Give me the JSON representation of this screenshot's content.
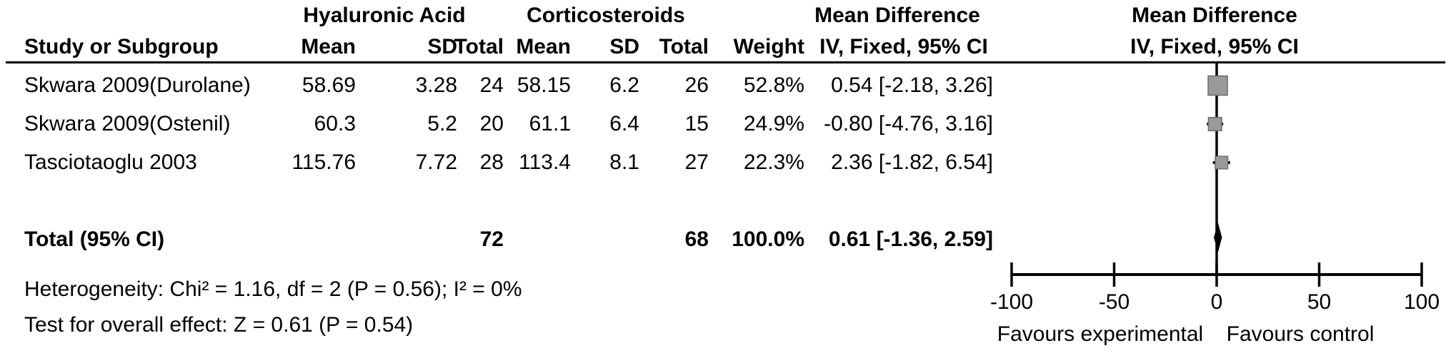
{
  "figure": {
    "group1_header": "Hyaluronic Acid",
    "group2_header": "Corticosteroids",
    "md_header_table": "Mean Difference",
    "md_header_plot": "Mean Difference",
    "method_header_table": "IV, Fixed, 95% CI",
    "method_header_plot": "IV, Fixed, 95% CI",
    "col_study": "Study or Subgroup",
    "col_mean_exp": "Mean",
    "col_sd_exp": "SD",
    "col_total_exp": "Total",
    "col_mean_ctrl": "Mean",
    "col_sd_ctrl": "SD",
    "col_total_ctrl": "Total",
    "col_weight": "Weight",
    "rows": [
      {
        "study": "Skwara 2009(Durolane)",
        "mean_e": "58.69",
        "sd_e": "3.28",
        "total_e": "24",
        "mean_c": "58.15",
        "sd_c": "6.2",
        "total_c": "26",
        "weight": "52.8%",
        "ci": "0.54 [-2.18, 3.26]"
      },
      {
        "study": "Skwara 2009(Ostenil)",
        "mean_e": "60.3",
        "sd_e": "5.2",
        "total_e": "20",
        "mean_c": "61.1",
        "sd_c": "6.4",
        "total_c": "15",
        "weight": "24.9%",
        "ci": "-0.80 [-4.76, 3.16]"
      },
      {
        "study": "Tasciotaoglu 2003",
        "mean_e": "115.76",
        "sd_e": "7.72",
        "total_e": "28",
        "mean_c": "113.4",
        "sd_c": "8.1",
        "total_c": "27",
        "weight": "22.3%",
        "ci": "2.36 [-1.82, 6.54]"
      }
    ],
    "total_row": {
      "label": "Total (95% CI)",
      "total_e": "72",
      "total_c": "68",
      "weight": "100.0%",
      "ci": "0.61 [-1.36, 2.59]"
    },
    "heterogeneity": "Heterogeneity: Chi² = 1.16, df = 2 (P = 0.56); I² = 0%",
    "overall_effect": "Test for overall effect: Z = 0.61 (P = 0.54)"
  },
  "chart_data": {
    "type": "forest",
    "effect_label": "Mean Difference",
    "method": "IV, Fixed, 95% CI",
    "experimental_group": "Hyaluronic Acid",
    "control_group": "Corticosteroids",
    "studies": [
      {
        "label": "Skwara 2009(Durolane)",
        "exp_mean": 58.69,
        "exp_sd": 3.28,
        "exp_n": 24,
        "ctrl_mean": 58.15,
        "ctrl_sd": 6.2,
        "ctrl_n": 26,
        "weight_pct": 52.8,
        "md": 0.54,
        "ci_low": -2.18,
        "ci_high": 3.26
      },
      {
        "label": "Skwara 2009(Ostenil)",
        "exp_mean": 60.3,
        "exp_sd": 5.2,
        "exp_n": 20,
        "ctrl_mean": 61.1,
        "ctrl_sd": 6.4,
        "ctrl_n": 15,
        "weight_pct": 24.9,
        "md": -0.8,
        "ci_low": -4.76,
        "ci_high": 3.16
      },
      {
        "label": "Tasciotaoglu 2003",
        "exp_mean": 115.76,
        "exp_sd": 7.72,
        "exp_n": 28,
        "ctrl_mean": 113.4,
        "ctrl_sd": 8.1,
        "ctrl_n": 27,
        "weight_pct": 22.3,
        "md": 2.36,
        "ci_low": -1.82,
        "ci_high": 6.54
      }
    ],
    "pooled": {
      "md": 0.61,
      "ci_low": -1.36,
      "ci_high": 2.59,
      "exp_total": 72,
      "ctrl_total": 68,
      "weight_pct": 100.0
    },
    "heterogeneity": {
      "chi2": 1.16,
      "df": 2,
      "p": 0.56,
      "i2_pct": 0
    },
    "overall_effect": {
      "z": 0.61,
      "p": 0.54
    },
    "axis": {
      "min": -100,
      "max": 100,
      "ticks": [
        -100,
        -50,
        0,
        50,
        100
      ]
    },
    "favours_left": "Favours experimental",
    "favours_right": "Favours control",
    "marker_color": "#9a9a9a",
    "marker_border": "#6e6e6e",
    "line_color": "#000000"
  }
}
